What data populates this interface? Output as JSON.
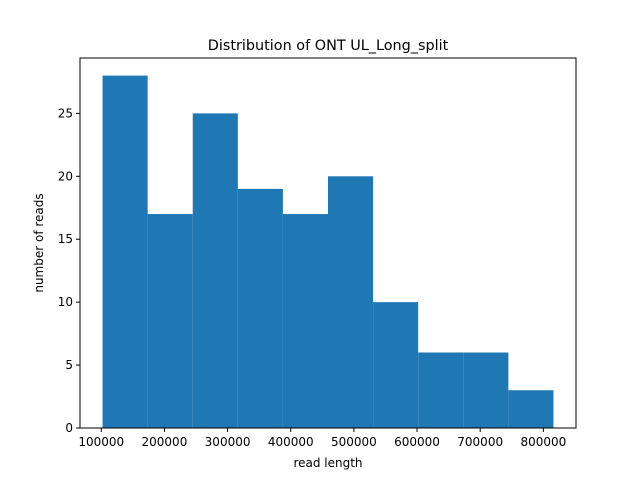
{
  "chart_data": {
    "type": "bar",
    "title": "Distribution of ONT UL_Long_split",
    "xlabel": "read length",
    "ylabel": "number of reads",
    "bins": [
      {
        "start": 102000,
        "end": 173400,
        "count": 28
      },
      {
        "start": 173400,
        "end": 244800,
        "count": 17
      },
      {
        "start": 244800,
        "end": 316200,
        "count": 25
      },
      {
        "start": 316200,
        "end": 387600,
        "count": 19
      },
      {
        "start": 387600,
        "end": 459000,
        "count": 17
      },
      {
        "start": 459000,
        "end": 530400,
        "count": 20
      },
      {
        "start": 530400,
        "end": 601800,
        "count": 10
      },
      {
        "start": 601800,
        "end": 673200,
        "count": 6
      },
      {
        "start": 673200,
        "end": 744600,
        "count": 6
      },
      {
        "start": 744600,
        "end": 816000,
        "count": 3
      }
    ],
    "xlim": [
      66300,
      851700
    ],
    "ylim": [
      0,
      29.4
    ],
    "xticks": [
      100000,
      200000,
      300000,
      400000,
      500000,
      600000,
      700000,
      800000
    ],
    "xtick_labels": [
      "100000",
      "200000",
      "300000",
      "400000",
      "500000",
      "600000",
      "700000",
      "800000"
    ],
    "yticks": [
      0,
      5,
      10,
      15,
      20,
      25
    ],
    "ytick_labels": [
      "0",
      "5",
      "10",
      "15",
      "20",
      "25"
    ],
    "bar_color": "#1f77b4",
    "grid": false,
    "legend": "none"
  }
}
